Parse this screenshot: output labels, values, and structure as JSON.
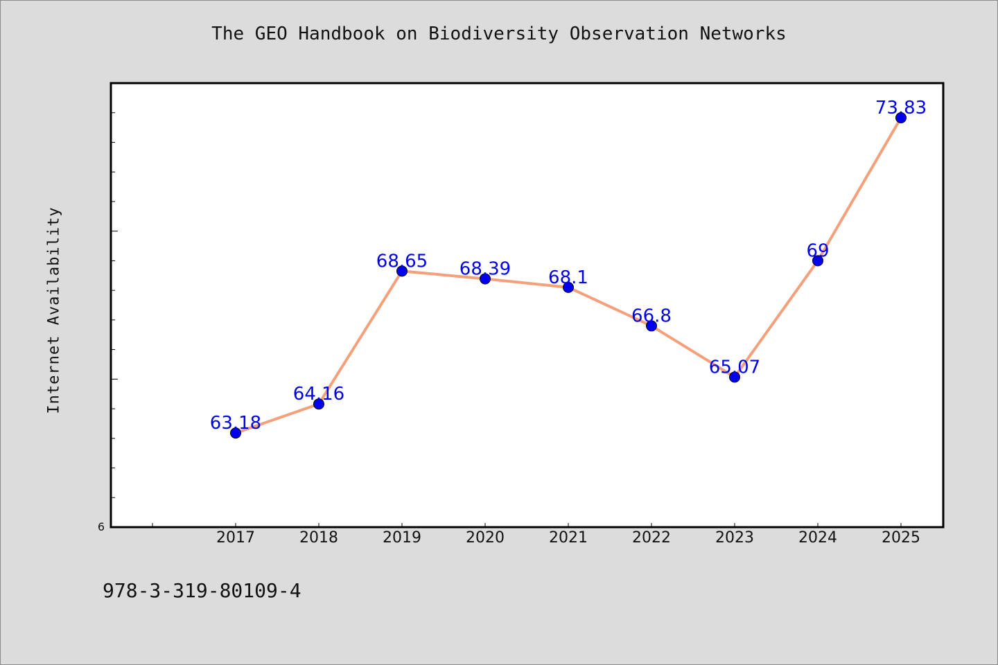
{
  "chart_data": {
    "type": "line",
    "title": "The GEO Handbook on Biodiversity Observation Networks",
    "xlabel": "",
    "ylabel": "Internet Availability",
    "categories": [
      "2017",
      "2018",
      "2019",
      "2020",
      "2021",
      "2022",
      "2023",
      "2024",
      "2025"
    ],
    "series": [
      {
        "values": [
          63.18,
          64.16,
          68.65,
          68.39,
          68.1,
          66.8,
          65.07,
          69,
          73.83
        ],
        "labels": [
          "63.18",
          "64.16",
          "68.65",
          "68.39",
          "68.1",
          "66.8",
          "65.07",
          "69",
          "73.83"
        ]
      }
    ],
    "ylim": [
      60,
      75
    ],
    "y_min_tick_label": "6",
    "grid": false,
    "legend": "none",
    "colors": {
      "line": "#f4a07a",
      "marker": "#0000ee",
      "data_label": "#0000ee",
      "plot_background": "#ffffff",
      "page_background": "#dcdcdc"
    }
  },
  "footer": {
    "isbn": "978-3-319-80109-4"
  }
}
